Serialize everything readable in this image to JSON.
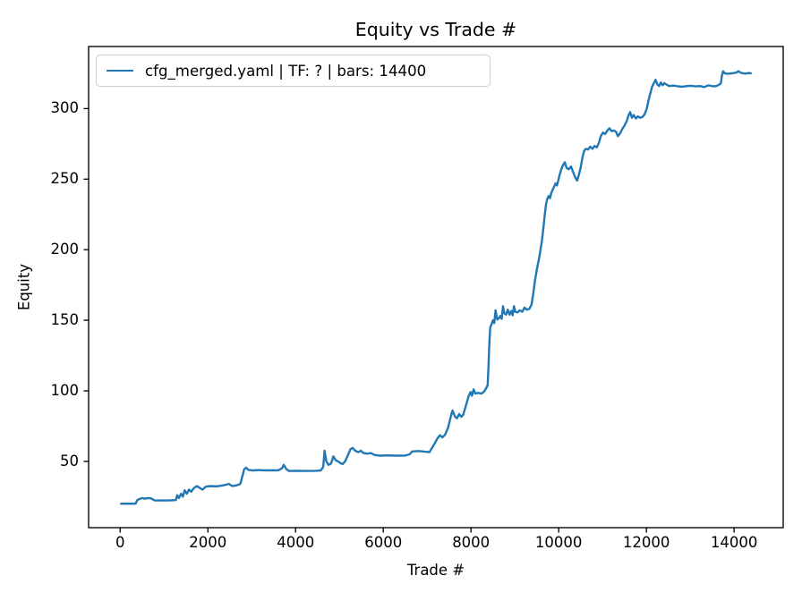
{
  "figure": {
    "background": "#ffffff"
  },
  "colors": {
    "line": "#1f77b4",
    "axes": "#000000",
    "text": "#000000",
    "legend_border": "#cccccc"
  },
  "chart_data": {
    "type": "line",
    "title": "Equity vs Trade #",
    "xlabel": "Trade #",
    "ylabel": "Equity",
    "xlim": [
      -720,
      15120
    ],
    "ylim": [
      3,
      344
    ],
    "xticks": [
      0,
      2000,
      4000,
      6000,
      8000,
      10000,
      12000,
      14000
    ],
    "yticks": [
      50,
      100,
      150,
      200,
      250,
      300
    ],
    "grid": false,
    "legend": {
      "position": "upper left",
      "entries": [
        {
          "label": "cfg_merged.yaml | TF: ? | bars: 14400",
          "color": "#1f77b4"
        }
      ]
    },
    "series": [
      {
        "name": "cfg_merged.yaml | TF: ? | bars: 14400",
        "color": "#1f77b4",
        "points": [
          [
            0,
            20
          ],
          [
            150,
            20
          ],
          [
            350,
            20
          ],
          [
            390,
            22.5
          ],
          [
            450,
            23.5
          ],
          [
            510,
            24
          ],
          [
            560,
            23.5
          ],
          [
            620,
            24
          ],
          [
            700,
            23.8
          ],
          [
            780,
            22.4
          ],
          [
            900,
            22.3
          ],
          [
            1100,
            22.3
          ],
          [
            1270,
            22.5
          ],
          [
            1300,
            26
          ],
          [
            1340,
            24
          ],
          [
            1390,
            27
          ],
          [
            1430,
            25
          ],
          [
            1470,
            29.5
          ],
          [
            1520,
            27
          ],
          [
            1570,
            30
          ],
          [
            1620,
            28.5
          ],
          [
            1680,
            31
          ],
          [
            1750,
            32.5
          ],
          [
            1820,
            31
          ],
          [
            1880,
            30
          ],
          [
            1950,
            32
          ],
          [
            2050,
            32.5
          ],
          [
            2200,
            32.3
          ],
          [
            2350,
            33
          ],
          [
            2480,
            34
          ],
          [
            2560,
            32.5
          ],
          [
            2650,
            33
          ],
          [
            2740,
            34
          ],
          [
            2790,
            40
          ],
          [
            2830,
            44.5
          ],
          [
            2870,
            45.5
          ],
          [
            2920,
            44
          ],
          [
            3020,
            43.5
          ],
          [
            3150,
            43.8
          ],
          [
            3300,
            43.6
          ],
          [
            3450,
            43.7
          ],
          [
            3600,
            43.6
          ],
          [
            3690,
            45
          ],
          [
            3730,
            47.5
          ],
          [
            3790,
            44.5
          ],
          [
            3850,
            43.2
          ],
          [
            4050,
            43.3
          ],
          [
            4250,
            43.2
          ],
          [
            4450,
            43.3
          ],
          [
            4570,
            43.5
          ],
          [
            4630,
            46
          ],
          [
            4660,
            57.5
          ],
          [
            4700,
            50
          ],
          [
            4750,
            47.5
          ],
          [
            4810,
            48.5
          ],
          [
            4860,
            53.5
          ],
          [
            4910,
            51
          ],
          [
            4960,
            50
          ],
          [
            5010,
            49
          ],
          [
            5070,
            48
          ],
          [
            5130,
            50
          ],
          [
            5190,
            54
          ],
          [
            5250,
            58.5
          ],
          [
            5300,
            59.5
          ],
          [
            5360,
            57.5
          ],
          [
            5430,
            56.5
          ],
          [
            5490,
            57.5
          ],
          [
            5540,
            56
          ],
          [
            5620,
            55.5
          ],
          [
            5720,
            55.8
          ],
          [
            5800,
            54.5
          ],
          [
            5920,
            54
          ],
          [
            6100,
            54.2
          ],
          [
            6300,
            54
          ],
          [
            6500,
            54.1
          ],
          [
            6600,
            55
          ],
          [
            6660,
            57
          ],
          [
            6800,
            57.3
          ],
          [
            6950,
            56.8
          ],
          [
            7050,
            56.5
          ],
          [
            7120,
            60
          ],
          [
            7180,
            63
          ],
          [
            7230,
            66
          ],
          [
            7290,
            68.5
          ],
          [
            7350,
            67
          ],
          [
            7410,
            69
          ],
          [
            7480,
            74
          ],
          [
            7540,
            82
          ],
          [
            7580,
            86
          ],
          [
            7630,
            82
          ],
          [
            7680,
            80.5
          ],
          [
            7730,
            83.5
          ],
          [
            7780,
            81.5
          ],
          [
            7820,
            83
          ],
          [
            7890,
            90
          ],
          [
            7950,
            96.5
          ],
          [
            7990,
            99
          ],
          [
            8020,
            96.5
          ],
          [
            8060,
            101
          ],
          [
            8100,
            98
          ],
          [
            8160,
            98.5
          ],
          [
            8240,
            98
          ],
          [
            8300,
            99.5
          ],
          [
            8350,
            102
          ],
          [
            8380,
            104
          ],
          [
            8400,
            118
          ],
          [
            8420,
            135
          ],
          [
            8440,
            145
          ],
          [
            8470,
            147
          ],
          [
            8500,
            150
          ],
          [
            8530,
            148
          ],
          [
            8560,
            157
          ],
          [
            8600,
            150.5
          ],
          [
            8640,
            151.5
          ],
          [
            8670,
            153
          ],
          [
            8700,
            151
          ],
          [
            8730,
            160
          ],
          [
            8760,
            155
          ],
          [
            8800,
            154
          ],
          [
            8840,
            157.5
          ],
          [
            8880,
            154
          ],
          [
            8920,
            156.5
          ],
          [
            8950,
            153.5
          ],
          [
            8980,
            160
          ],
          [
            9010,
            156
          ],
          [
            9060,
            155.5
          ],
          [
            9110,
            157
          ],
          [
            9170,
            156
          ],
          [
            9220,
            159
          ],
          [
            9270,
            157.5
          ],
          [
            9330,
            158
          ],
          [
            9380,
            161
          ],
          [
            9420,
            169
          ],
          [
            9450,
            176
          ],
          [
            9480,
            182
          ],
          [
            9520,
            189
          ],
          [
            9560,
            195
          ],
          [
            9590,
            201
          ],
          [
            9620,
            207
          ],
          [
            9650,
            215
          ],
          [
            9680,
            224
          ],
          [
            9710,
            232
          ],
          [
            9740,
            236
          ],
          [
            9770,
            238
          ],
          [
            9800,
            236.5
          ],
          [
            9830,
            240
          ],
          [
            9870,
            243
          ],
          [
            9900,
            245
          ],
          [
            9930,
            247
          ],
          [
            9960,
            245.5
          ],
          [
            9990,
            249
          ],
          [
            10020,
            253
          ],
          [
            10060,
            257
          ],
          [
            10100,
            260
          ],
          [
            10140,
            262
          ],
          [
            10180,
            258
          ],
          [
            10230,
            257
          ],
          [
            10280,
            259
          ],
          [
            10330,
            255
          ],
          [
            10380,
            251
          ],
          [
            10420,
            249
          ],
          [
            10460,
            253
          ],
          [
            10500,
            258
          ],
          [
            10540,
            265
          ],
          [
            10580,
            270
          ],
          [
            10620,
            271.5
          ],
          [
            10670,
            271
          ],
          [
            10720,
            273
          ],
          [
            10770,
            271.5
          ],
          [
            10820,
            273.5
          ],
          [
            10870,
            272.5
          ],
          [
            10920,
            276
          ],
          [
            10960,
            280.5
          ],
          [
            11010,
            283
          ],
          [
            11060,
            282
          ],
          [
            11110,
            284.5
          ],
          [
            11160,
            286
          ],
          [
            11210,
            284
          ],
          [
            11260,
            284.5
          ],
          [
            11310,
            283.5
          ],
          [
            11350,
            280.5
          ],
          [
            11400,
            282.5
          ],
          [
            11450,
            285.5
          ],
          [
            11500,
            288
          ],
          [
            11550,
            291
          ],
          [
            11590,
            295
          ],
          [
            11630,
            297.5
          ],
          [
            11670,
            293.5
          ],
          [
            11710,
            295.5
          ],
          [
            11760,
            293
          ],
          [
            11810,
            294.5
          ],
          [
            11860,
            293.5
          ],
          [
            11910,
            294
          ],
          [
            11960,
            296
          ],
          [
            12010,
            300
          ],
          [
            12050,
            306
          ],
          [
            12090,
            311
          ],
          [
            12130,
            315.5
          ],
          [
            12170,
            318
          ],
          [
            12210,
            320.5
          ],
          [
            12250,
            317
          ],
          [
            12290,
            316
          ],
          [
            12330,
            318.5
          ],
          [
            12370,
            316.5
          ],
          [
            12410,
            318
          ],
          [
            12460,
            317
          ],
          [
            12520,
            316
          ],
          [
            12620,
            316.3
          ],
          [
            12720,
            315.8
          ],
          [
            12820,
            315.5
          ],
          [
            12920,
            316
          ],
          [
            13020,
            316.2
          ],
          [
            13120,
            315.7
          ],
          [
            13220,
            316
          ],
          [
            13320,
            315.3
          ],
          [
            13420,
            316.5
          ],
          [
            13520,
            315.8
          ],
          [
            13600,
            316
          ],
          [
            13660,
            317
          ],
          [
            13700,
            318
          ],
          [
            13720,
            323
          ],
          [
            13750,
            326.5
          ],
          [
            13790,
            325
          ],
          [
            13850,
            324.7
          ],
          [
            13950,
            325
          ],
          [
            14050,
            325.5
          ],
          [
            14100,
            326.5
          ],
          [
            14160,
            325.3
          ],
          [
            14250,
            324.8
          ],
          [
            14330,
            325.2
          ],
          [
            14400,
            325
          ]
        ]
      }
    ]
  }
}
